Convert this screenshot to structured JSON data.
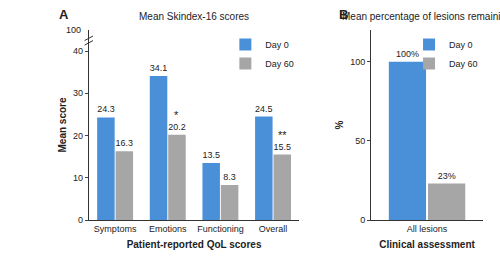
{
  "chart_data": [
    {
      "type": "bar",
      "panel": "A",
      "title": "Mean Skindex-16 scores",
      "x_label": "Patient-reported QoL scores",
      "y_label": "Mean score",
      "categories": [
        "Symptoms",
        "Emotions",
        "Functioning",
        "Overall"
      ],
      "series": [
        {
          "name": "Day 0",
          "color": "#4a90d9",
          "values": [
            24.3,
            34.1,
            13.5,
            24.5
          ]
        },
        {
          "name": "Day 60",
          "color": "#a6a6a6",
          "values": [
            16.3,
            20.2,
            8.3,
            15.5
          ]
        }
      ],
      "ylim": [
        0,
        45
      ],
      "yticks": [
        0,
        10,
        20,
        30,
        40
      ],
      "axis_break_label": "100",
      "annotations": [
        {
          "text": "*",
          "category": "Emotions",
          "series": "Day 60"
        },
        {
          "text": "**",
          "category": "Overall",
          "series": "Day 60"
        }
      ],
      "data_labels": true,
      "grid": false,
      "legend": "upper right"
    },
    {
      "type": "bar",
      "panel": "B",
      "title": "Mean percentage of lesions remaining",
      "x_label": "Clinical assessment",
      "y_label": "%",
      "categories": [
        "All lesions"
      ],
      "series": [
        {
          "name": "Day 0",
          "color": "#4a90d9",
          "values": [
            100
          ],
          "value_labels": [
            "100%"
          ]
        },
        {
          "name": "Day 60",
          "color": "#a6a6a6",
          "values": [
            23
          ],
          "value_labels": [
            "23%"
          ]
        }
      ],
      "ylim": [
        0,
        120
      ],
      "yticks": [
        0,
        50,
        100
      ],
      "data_labels": true,
      "grid": false,
      "legend": "upper right"
    }
  ]
}
